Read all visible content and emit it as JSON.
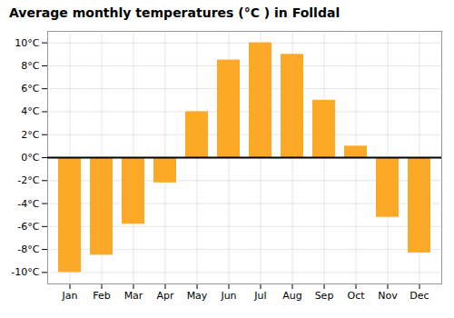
{
  "chart_data": {
    "type": "bar",
    "title": "Average monthly temperatures (°C ) in Folldal",
    "categories": [
      "Jan",
      "Feb",
      "Mar",
      "Apr",
      "May",
      "Jun",
      "Jul",
      "Aug",
      "Sep",
      "Oct",
      "Nov",
      "Dec"
    ],
    "values": [
      -10,
      -8.5,
      -5.8,
      -2.2,
      4.0,
      8.5,
      10.0,
      9.0,
      5.0,
      1.0,
      -5.2,
      -8.3
    ],
    "color": "#FCA928",
    "ylim": [
      -11,
      11
    ],
    "yticks": [
      {
        "value": -10,
        "label": "-10°C"
      },
      {
        "value": -8,
        "label": "-8°C"
      },
      {
        "value": -6,
        "label": "-6°C"
      },
      {
        "value": -4,
        "label": "-4°C"
      },
      {
        "value": -2,
        "label": "-2°C"
      },
      {
        "value": 0,
        "label": "0°C"
      },
      {
        "value": 2,
        "label": "2°C"
      },
      {
        "value": 4,
        "label": "4°C"
      },
      {
        "value": 6,
        "label": "6°C"
      },
      {
        "value": 8,
        "label": "8°C"
      },
      {
        "value": 10,
        "label": "10°C"
      }
    ],
    "grid": true
  }
}
